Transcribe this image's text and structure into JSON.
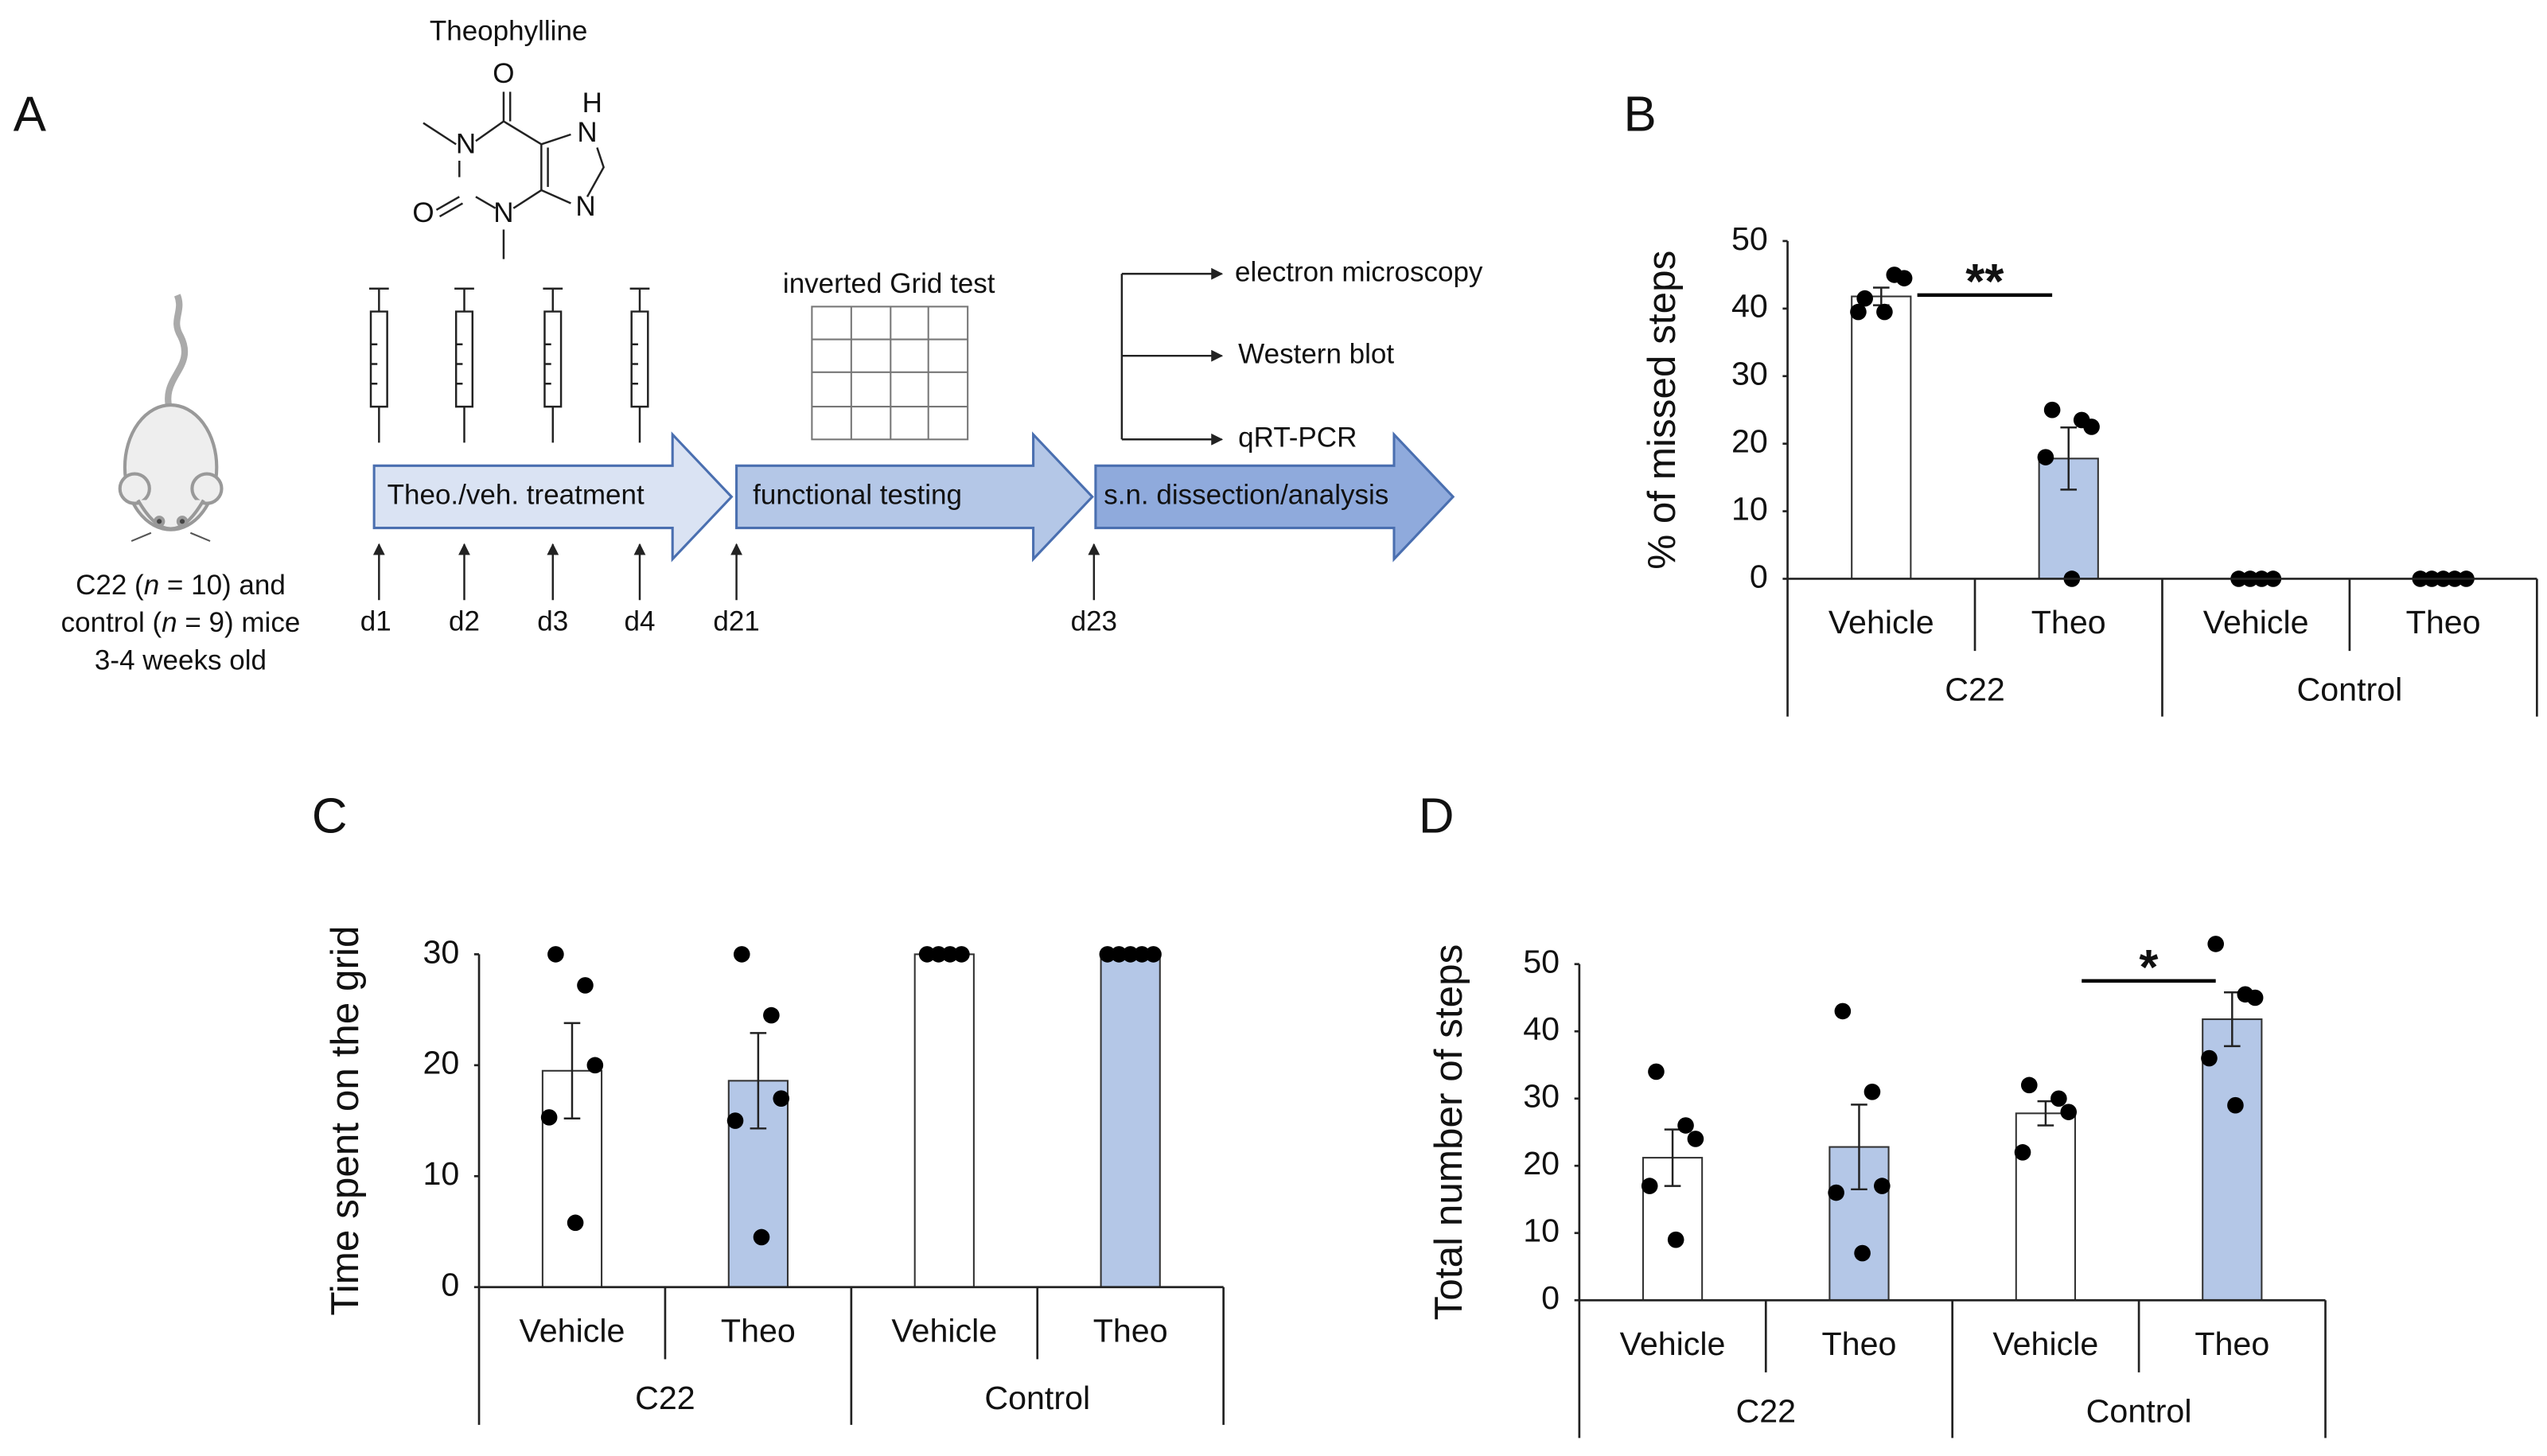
{
  "diagram": {
    "panel": "A",
    "compound": "Theophylline",
    "atoms": [
      "O",
      "H",
      "N",
      "N",
      "N",
      "O",
      "N"
    ],
    "caption": [
      [
        "C22 (",
        "n",
        " = 10) and"
      ],
      [
        "control (",
        "n",
        " = 9) mice"
      ],
      [
        "3-4 weeks old"
      ]
    ],
    "stages": [
      "Theo./veh. treatment",
      "functional testing",
      "s.n. dissection/analysis"
    ],
    "test": "inverted Grid test",
    "analyses": [
      "electron microscopy",
      "Western blot",
      "qRT-PCR"
    ],
    "days": [
      "d1",
      "d2",
      "d3",
      "d4",
      "d21",
      "d23"
    ]
  },
  "chart_data": [
    {
      "type": "bar",
      "panel": "B",
      "ylabel": "% of missed steps",
      "categories": [
        "Vehicle",
        "Theo",
        "Vehicle",
        "Theo"
      ],
      "groups": [
        "C22",
        "Control"
      ],
      "colors": [
        "#ffffff",
        "#b4c7e7",
        "#ffffff",
        "#b4c7e7"
      ],
      "values": [
        41.8,
        17.8,
        0,
        0
      ],
      "errors": [
        1.3,
        4.6,
        0,
        0
      ],
      "points": [
        [
          41.5,
          45,
          44.5,
          39.5,
          39.5
        ],
        [
          25,
          23.5,
          22.5,
          18,
          0
        ],
        [
          0,
          0,
          0,
          0
        ],
        [
          0,
          0,
          0,
          0,
          0
        ]
      ],
      "ylim": [
        0,
        50
      ],
      "yticks": [
        0,
        10,
        20,
        30,
        40,
        50
      ],
      "annotations": [
        {
          "text": "**",
          "from": 0,
          "to": 1,
          "y": 42
        }
      ]
    },
    {
      "type": "bar",
      "panel": "C",
      "ylabel": "Time spent on the grid",
      "categories": [
        "Vehicle",
        "Theo",
        "Vehicle",
        "Theo"
      ],
      "groups": [
        "C22",
        "Control"
      ],
      "colors": [
        "#ffffff",
        "#b4c7e7",
        "#ffffff",
        "#b4c7e7"
      ],
      "values": [
        19.5,
        18.6,
        30,
        30
      ],
      "errors": [
        4.3,
        4.3,
        0,
        0
      ],
      "points": [
        [
          30,
          27.2,
          20,
          15.3,
          5.8
        ],
        [
          30,
          24.5,
          17,
          15,
          4.5
        ],
        [
          30,
          30,
          30,
          30
        ],
        [
          30,
          30,
          30,
          30,
          30
        ]
      ],
      "ylim": [
        0,
        30
      ],
      "yticks": [
        0,
        10,
        20,
        30
      ],
      "annotations": []
    },
    {
      "type": "bar",
      "panel": "D",
      "ylabel": "Total number of steps",
      "categories": [
        "Vehicle",
        "Theo",
        "Vehicle",
        "Theo"
      ],
      "groups": [
        "C22",
        "Control"
      ],
      "colors": [
        "#ffffff",
        "#b4c7e7",
        "#ffffff",
        "#b4c7e7"
      ],
      "values": [
        21.2,
        22.8,
        27.8,
        41.8
      ],
      "errors": [
        4.2,
        6.3,
        1.8,
        4
      ],
      "points": [
        [
          34,
          26,
          24,
          17,
          9
        ],
        [
          43,
          31,
          17,
          16,
          7
        ],
        [
          32,
          30,
          28,
          22
        ],
        [
          53,
          45.5,
          45,
          36,
          29
        ]
      ],
      "ylim": [
        0,
        50
      ],
      "yticks": [
        0,
        10,
        20,
        30,
        40,
        50
      ],
      "annotations": [
        {
          "text": "*",
          "from": 2,
          "to": 3,
          "y": 47.5
        }
      ]
    }
  ]
}
